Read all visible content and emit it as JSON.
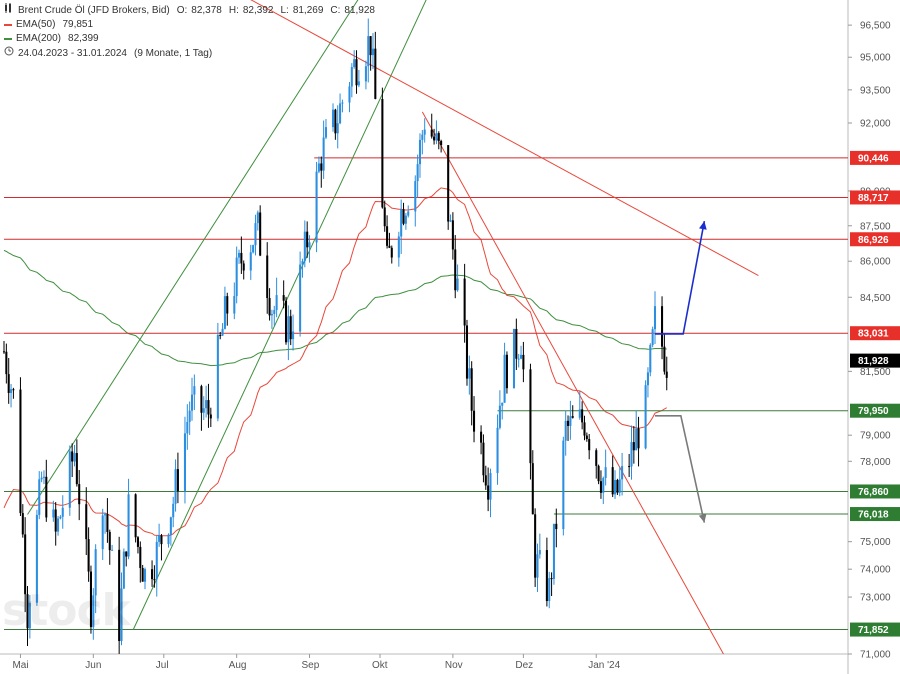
{
  "legend": {
    "title": "Brent Crude Öl (JFD Brokers, Bid)",
    "ohlc": {
      "o_label": "O:",
      "o": "82,378",
      "h_label": "H:",
      "h": "82,392",
      "l_label": "L:",
      "l": "81,269",
      "c_label": "C:",
      "c": "81,928"
    },
    "ema50": {
      "label": "EMA(50)",
      "value": "79,851",
      "color": "#e8483b"
    },
    "ema200": {
      "label": "EMA(200)",
      "value": "82,399",
      "color": "#3f8f3f"
    },
    "range": "24.04.2023 - 31.01.2024",
    "range_note": "(9 Monate, 1 Tag)",
    "clock_icon": "clock-icon",
    "chart_icon": "candlestick-icon"
  },
  "watermark": "stock",
  "chart_data": {
    "type": "candlestick",
    "y_scale": "log",
    "ylim": [
      71.0,
      97.5
    ],
    "x_range": [
      "2023-04-24",
      "2024-01-31"
    ],
    "up_color": "#2b8ee0",
    "down_color": "#000000",
    "x_ticks": [
      {
        "label": "Mai",
        "date": "2023-05-01"
      },
      {
        "label": "Jun",
        "date": "2023-06-01"
      },
      {
        "label": "Jul",
        "date": "2023-07-01"
      },
      {
        "label": "Aug",
        "date": "2023-08-01"
      },
      {
        "label": "Sep",
        "date": "2023-09-01"
      },
      {
        "label": "Okt",
        "date": "2023-10-01"
      },
      {
        "label": "Nov",
        "date": "2023-11-01"
      },
      {
        "label": "Dez",
        "date": "2023-12-01"
      },
      {
        "label": "Jan '24",
        "date": "2024-01-01"
      }
    ],
    "y_ticks": [
      "96,500",
      "95,000",
      "93,500",
      "92,000",
      "89,000",
      "87,500",
      "86,000",
      "84,500",
      "81,500",
      "79,000",
      "78,000",
      "75,000",
      "74,000",
      "73,000",
      "71,000"
    ],
    "y_tick_values": [
      96.5,
      95.0,
      93.5,
      92.0,
      89.0,
      87.5,
      86.0,
      84.5,
      81.5,
      79.0,
      78.0,
      75.0,
      74.0,
      73.0,
      71.0
    ],
    "price_levels": [
      {
        "label": "90,446",
        "value": 90.446,
        "kind": "resistance",
        "from": "2023-09-03"
      },
      {
        "label": "88,717",
        "value": 88.717,
        "kind": "resistance",
        "from": "2023-04-24"
      },
      {
        "label": "86,926",
        "value": 86.926,
        "kind": "resistance",
        "from": "2023-04-24"
      },
      {
        "label": "83,031",
        "value": 83.031,
        "kind": "resistance",
        "from": "2023-04-24"
      },
      {
        "label": "79,950",
        "value": 79.95,
        "kind": "support",
        "from": "2023-11-20"
      },
      {
        "label": "76,860",
        "value": 76.86,
        "kind": "support",
        "from": "2023-04-24"
      },
      {
        "label": "76,018",
        "value": 76.018,
        "kind": "support",
        "from": "2023-12-14"
      },
      {
        "label": "71,852",
        "value": 71.852,
        "kind": "support",
        "from": "2023-04-24"
      }
    ],
    "last_price": {
      "label": "81,928",
      "value": 81.928
    },
    "trendlines": [
      {
        "kind": "channel",
        "color": "#3f8f3f",
        "from": [
          "2023-06-18",
          71.85
        ],
        "to": [
          "2023-10-26",
          99.0
        ]
      },
      {
        "kind": "channel",
        "color": "#3f8f3f",
        "from": [
          "2023-05-04",
          76.0
        ],
        "to": [
          "2023-09-29",
          99.0
        ]
      },
      {
        "kind": "resistance",
        "color": "#e8483b",
        "from": [
          "2023-07-25",
          98.5
        ],
        "to": [
          "2024-03-10",
          85.4
        ]
      },
      {
        "kind": "resistance",
        "color": "#e8483b",
        "from": [
          "2023-10-19",
          92.5
        ],
        "to": [
          "2024-03-02",
          70.0
        ]
      }
    ],
    "arrows": [
      {
        "color": "#1a2ecf",
        "points": [
          [
            "2024-01-26",
            83.0
          ],
          [
            "2024-02-07",
            83.0
          ],
          [
            "2024-02-16",
            87.7
          ]
        ]
      },
      {
        "color": "#7a7a7a",
        "points": [
          [
            "2024-01-26",
            79.75
          ],
          [
            "2024-02-06",
            79.75
          ],
          [
            "2024-02-16",
            75.7
          ]
        ]
      }
    ],
    "closes": [
      [
        "2023-04-24",
        82.3
      ],
      [
        "2023-04-28",
        80.5
      ],
      [
        "2023-05-04",
        72.5
      ],
      [
        "2023-05-10",
        77.3
      ],
      [
        "2023-05-16",
        75.2
      ],
      [
        "2023-05-24",
        78.4
      ],
      [
        "2023-05-31",
        72.7
      ],
      [
        "2023-06-05",
        76.8
      ],
      [
        "2023-06-12",
        72.0
      ],
      [
        "2023-06-16",
        76.2
      ],
      [
        "2023-06-23",
        73.8
      ],
      [
        "2023-06-28",
        74.6
      ],
      [
        "2023-07-05",
        76.5
      ],
      [
        "2023-07-12",
        80.1
      ],
      [
        "2023-07-20",
        79.9
      ],
      [
        "2023-07-27",
        83.7
      ],
      [
        "2023-08-04",
        86.4
      ],
      [
        "2023-08-10",
        87.3
      ],
      [
        "2023-08-16",
        84.1
      ],
      [
        "2023-08-24",
        83.2
      ],
      [
        "2023-08-31",
        86.9
      ],
      [
        "2023-09-06",
        90.6
      ],
      [
        "2023-09-13",
        92.3
      ],
      [
        "2023-09-19",
        94.4
      ],
      [
        "2023-09-27",
        95.8
      ],
      [
        "2023-10-04",
        85.8
      ],
      [
        "2023-10-09",
        87.9
      ],
      [
        "2023-10-16",
        89.6
      ],
      [
        "2023-10-20",
        92.2
      ],
      [
        "2023-10-27",
        90.5
      ],
      [
        "2023-11-03",
        84.9
      ],
      [
        "2023-11-09",
        80.1
      ],
      [
        "2023-11-16",
        77.4
      ],
      [
        "2023-11-23",
        81.5
      ],
      [
        "2023-11-30",
        82.9
      ],
      [
        "2023-12-06",
        74.3
      ],
      [
        "2023-12-12",
        73.2
      ],
      [
        "2023-12-19",
        79.2
      ],
      [
        "2023-12-27",
        79.6
      ],
      [
        "2024-01-03",
        77.5
      ],
      [
        "2024-01-09",
        76.6
      ],
      [
        "2024-01-16",
        78.3
      ],
      [
        "2024-01-22",
        80.1
      ],
      [
        "2024-01-26",
        83.5
      ],
      [
        "2024-01-31",
        81.9
      ]
    ]
  }
}
